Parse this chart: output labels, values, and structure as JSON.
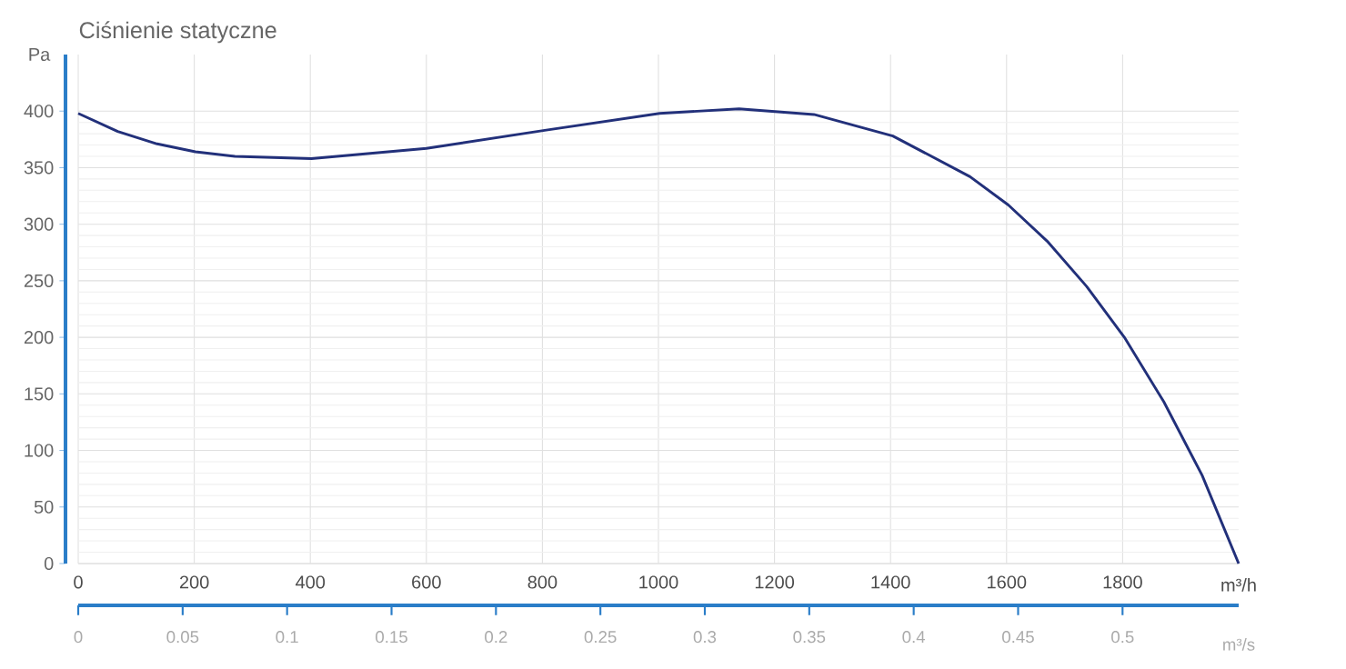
{
  "chart_data": {
    "type": "line",
    "title": "Ciśnienie statyczne",
    "xlabel": "m³/h",
    "x2label": "m³/s",
    "ylabel": "Pa",
    "x": [
      0,
      68,
      136,
      202,
      270,
      402,
      600,
      804,
      1002,
      1139,
      1268,
      1404,
      1537,
      1603,
      1670,
      1738,
      1803,
      1871,
      1937,
      2000
    ],
    "series": [
      {
        "color": "#22307a",
        "values": [
          398,
          382,
          371,
          364,
          360,
          358,
          367,
          383,
          398,
          402,
          397,
          378,
          342,
          317,
          285,
          245,
          200,
          143,
          78,
          0
        ]
      }
    ],
    "xlim": [
      0,
      2000
    ],
    "xticks": [
      0,
      200,
      400,
      600,
      800,
      1000,
      1200,
      1400,
      1600,
      1800
    ],
    "x2lim": [
      0,
      0.5556
    ],
    "x2ticks": [
      0,
      0.05,
      0.1,
      0.15,
      0.2,
      0.25,
      0.3,
      0.35,
      0.4,
      0.45,
      0.5
    ],
    "ylim": [
      0,
      450
    ],
    "yticks": [
      0,
      50,
      100,
      150,
      200,
      250,
      300,
      350,
      400
    ],
    "grid": true
  }
}
